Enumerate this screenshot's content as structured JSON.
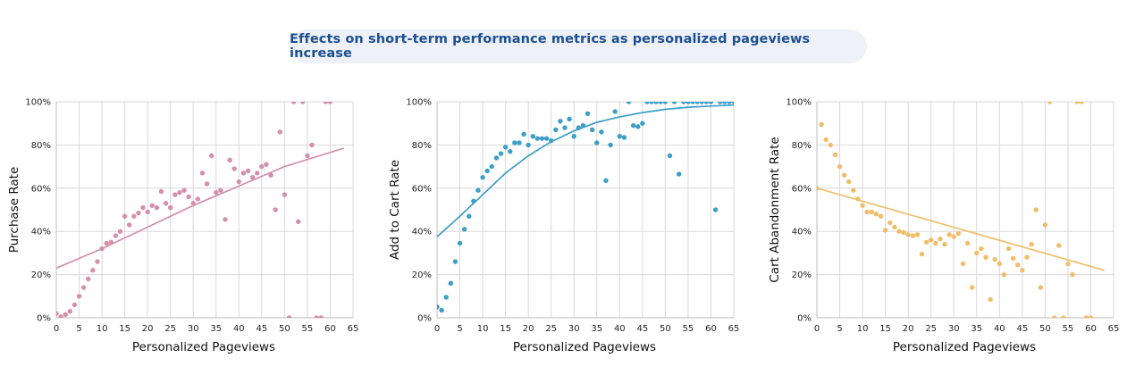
{
  "banner": {
    "title": "Effects on short-term performance metrics as personalized pageviews increase"
  },
  "chart_data": [
    {
      "type": "scatter",
      "xlabel": "Personalized Pageviews",
      "ylabel": "Purchase Rate",
      "xlim": [
        0,
        65
      ],
      "ylim": [
        0,
        1
      ],
      "x_ticks": [
        0,
        5,
        10,
        15,
        20,
        25,
        30,
        35,
        40,
        45,
        50,
        55,
        60,
        65
      ],
      "y_ticks": [
        0,
        0.2,
        0.4,
        0.6,
        0.8,
        1.0
      ],
      "y_tick_labels": [
        "0%",
        "20%",
        "40%",
        "60%",
        "80%",
        "100%"
      ],
      "grid": true,
      "color": "#d58fac",
      "points": [
        [
          0,
          0.02
        ],
        [
          1,
          0.005
        ],
        [
          2,
          0.015
        ],
        [
          3,
          0.03
        ],
        [
          4,
          0.06
        ],
        [
          5,
          0.1
        ],
        [
          6,
          0.14
        ],
        [
          7,
          0.18
        ],
        [
          8,
          0.22
        ],
        [
          9,
          0.26
        ],
        [
          10,
          0.32
        ],
        [
          11,
          0.345
        ],
        [
          12,
          0.35
        ],
        [
          13,
          0.38
        ],
        [
          14,
          0.4
        ],
        [
          15,
          0.47
        ],
        [
          16,
          0.43
        ],
        [
          17,
          0.47
        ],
        [
          18,
          0.485
        ],
        [
          19,
          0.51
        ],
        [
          20,
          0.49
        ],
        [
          21,
          0.52
        ],
        [
          22,
          0.51
        ],
        [
          23,
          0.585
        ],
        [
          24,
          0.53
        ],
        [
          25,
          0.51
        ],
        [
          26,
          0.57
        ],
        [
          27,
          0.58
        ],
        [
          28,
          0.59
        ],
        [
          29,
          0.56
        ],
        [
          30,
          0.53
        ],
        [
          31,
          0.55
        ],
        [
          32,
          0.67
        ],
        [
          33,
          0.62
        ],
        [
          34,
          0.75
        ],
        [
          35,
          0.58
        ],
        [
          36,
          0.59
        ],
        [
          37,
          0.455
        ],
        [
          38,
          0.73
        ],
        [
          39,
          0.69
        ],
        [
          40,
          0.63
        ],
        [
          41,
          0.67
        ],
        [
          42,
          0.68
        ],
        [
          43,
          0.65
        ],
        [
          44,
          0.67
        ],
        [
          45,
          0.7
        ],
        [
          46,
          0.71
        ],
        [
          47,
          0.66
        ],
        [
          48,
          0.5
        ],
        [
          49,
          0.86
        ],
        [
          50,
          0.57
        ],
        [
          51,
          0.0
        ],
        [
          52,
          1.0
        ],
        [
          53,
          0.445
        ],
        [
          54,
          1.0
        ],
        [
          55,
          0.75
        ],
        [
          56,
          0.8
        ],
        [
          57,
          0.0
        ],
        [
          58,
          0.0
        ],
        [
          59,
          1.0
        ],
        [
          60,
          1.0
        ]
      ],
      "trend": [
        [
          0,
          0.23
        ],
        [
          10,
          0.32
        ],
        [
          20,
          0.42
        ],
        [
          30,
          0.52
        ],
        [
          40,
          0.61
        ],
        [
          50,
          0.7
        ],
        [
          63,
          0.785
        ]
      ]
    },
    {
      "type": "scatter",
      "xlabel": "Personalized Pageviews",
      "ylabel": "Add to Cart Rate",
      "xlim": [
        0,
        65
      ],
      "ylim": [
        0,
        1
      ],
      "x_ticks": [
        0,
        5,
        10,
        15,
        20,
        25,
        30,
        35,
        40,
        45,
        50,
        55,
        60,
        65
      ],
      "y_ticks": [
        0,
        0.2,
        0.4,
        0.6,
        0.8,
        1.0
      ],
      "y_tick_labels": [
        "0%",
        "20%",
        "40%",
        "60%",
        "80%",
        "100%"
      ],
      "grid": true,
      "color": "#3d9ec8",
      "points": [
        [
          0,
          0.05
        ],
        [
          1,
          0.035
        ],
        [
          2,
          0.095
        ],
        [
          3,
          0.16
        ],
        [
          4,
          0.26
        ],
        [
          5,
          0.345
        ],
        [
          6,
          0.41
        ],
        [
          7,
          0.47
        ],
        [
          8,
          0.54
        ],
        [
          9,
          0.59
        ],
        [
          10,
          0.65
        ],
        [
          11,
          0.68
        ],
        [
          12,
          0.7
        ],
        [
          13,
          0.74
        ],
        [
          14,
          0.76
        ],
        [
          15,
          0.79
        ],
        [
          16,
          0.77
        ],
        [
          17,
          0.81
        ],
        [
          18,
          0.81
        ],
        [
          19,
          0.85
        ],
        [
          20,
          0.8
        ],
        [
          21,
          0.84
        ],
        [
          22,
          0.83
        ],
        [
          23,
          0.83
        ],
        [
          24,
          0.83
        ],
        [
          25,
          0.82
        ],
        [
          26,
          0.87
        ],
        [
          27,
          0.91
        ],
        [
          28,
          0.88
        ],
        [
          29,
          0.92
        ],
        [
          30,
          0.84
        ],
        [
          31,
          0.88
        ],
        [
          32,
          0.89
        ],
        [
          33,
          0.945
        ],
        [
          34,
          0.87
        ],
        [
          35,
          0.81
        ],
        [
          36,
          0.86
        ],
        [
          37,
          0.635
        ],
        [
          38,
          0.8
        ],
        [
          39,
          0.955
        ],
        [
          40,
          0.84
        ],
        [
          41,
          0.835
        ],
        [
          42,
          1.0
        ],
        [
          43,
          0.89
        ],
        [
          44,
          0.885
        ],
        [
          45,
          0.9
        ],
        [
          46,
          1.0
        ],
        [
          47,
          1.0
        ],
        [
          48,
          1.0
        ],
        [
          49,
          1.0
        ],
        [
          50,
          1.0
        ],
        [
          51,
          0.75
        ],
        [
          52,
          1.0
        ],
        [
          53,
          0.665
        ],
        [
          54,
          1.0
        ],
        [
          55,
          1.0
        ],
        [
          56,
          1.0
        ],
        [
          57,
          1.0
        ],
        [
          58,
          1.0
        ],
        [
          59,
          1.0
        ],
        [
          60,
          1.0
        ],
        [
          61,
          0.5
        ],
        [
          62,
          1.0
        ],
        [
          63,
          1.0
        ],
        [
          64,
          1.0
        ],
        [
          65,
          1.0
        ]
      ],
      "trend": [
        [
          0,
          0.375
        ],
        [
          5,
          0.47
        ],
        [
          10,
          0.57
        ],
        [
          15,
          0.67
        ],
        [
          20,
          0.75
        ],
        [
          25,
          0.815
        ],
        [
          30,
          0.865
        ],
        [
          35,
          0.905
        ],
        [
          40,
          0.93
        ],
        [
          45,
          0.95
        ],
        [
          50,
          0.965
        ],
        [
          55,
          0.975
        ],
        [
          60,
          0.98
        ],
        [
          65,
          0.985
        ]
      ]
    },
    {
      "type": "scatter",
      "xlabel": "Personalized Pageviews",
      "ylabel": "Cart Abandonment Rate",
      "xlim": [
        0,
        65
      ],
      "ylim": [
        0,
        1
      ],
      "x_ticks": [
        0,
        5,
        10,
        15,
        20,
        25,
        30,
        35,
        40,
        45,
        50,
        55,
        60,
        65
      ],
      "y_ticks": [
        0,
        0.2,
        0.4,
        0.6,
        0.8,
        1.0
      ],
      "y_tick_labels": [
        "0%",
        "20%",
        "40%",
        "60%",
        "80%",
        "100%"
      ],
      "grid": true,
      "color": "#f0bd6a",
      "points": [
        [
          0,
          0.6
        ],
        [
          1,
          0.895
        ],
        [
          2,
          0.825
        ],
        [
          3,
          0.8
        ],
        [
          4,
          0.755
        ],
        [
          5,
          0.7
        ],
        [
          6,
          0.66
        ],
        [
          7,
          0.63
        ],
        [
          8,
          0.59
        ],
        [
          9,
          0.55
        ],
        [
          10,
          0.52
        ],
        [
          11,
          0.49
        ],
        [
          12,
          0.49
        ],
        [
          13,
          0.48
        ],
        [
          14,
          0.47
        ],
        [
          15,
          0.405
        ],
        [
          16,
          0.44
        ],
        [
          17,
          0.42
        ],
        [
          18,
          0.4
        ],
        [
          19,
          0.395
        ],
        [
          20,
          0.385
        ],
        [
          21,
          0.38
        ],
        [
          22,
          0.385
        ],
        [
          23,
          0.295
        ],
        [
          24,
          0.35
        ],
        [
          25,
          0.36
        ],
        [
          26,
          0.345
        ],
        [
          27,
          0.365
        ],
        [
          28,
          0.34
        ],
        [
          29,
          0.385
        ],
        [
          30,
          0.375
        ],
        [
          31,
          0.39
        ],
        [
          32,
          0.25
        ],
        [
          33,
          0.345
        ],
        [
          34,
          0.14
        ],
        [
          35,
          0.3
        ],
        [
          36,
          0.32
        ],
        [
          37,
          0.28
        ],
        [
          38,
          0.085
        ],
        [
          39,
          0.27
        ],
        [
          40,
          0.25
        ],
        [
          41,
          0.2
        ],
        [
          42,
          0.32
        ],
        [
          43,
          0.275
        ],
        [
          44,
          0.245
        ],
        [
          45,
          0.22
        ],
        [
          46,
          0.28
        ],
        [
          47,
          0.34
        ],
        [
          48,
          0.5
        ],
        [
          49,
          0.14
        ],
        [
          50,
          0.43
        ],
        [
          51,
          1.0
        ],
        [
          52,
          0.0
        ],
        [
          53,
          0.335
        ],
        [
          54,
          0.0
        ],
        [
          55,
          0.25
        ],
        [
          56,
          0.2
        ],
        [
          57,
          1.0
        ],
        [
          58,
          1.0
        ],
        [
          59,
          0.0
        ],
        [
          60,
          0.0
        ]
      ],
      "trend": [
        [
          0,
          0.6
        ],
        [
          63,
          0.22
        ]
      ]
    }
  ]
}
